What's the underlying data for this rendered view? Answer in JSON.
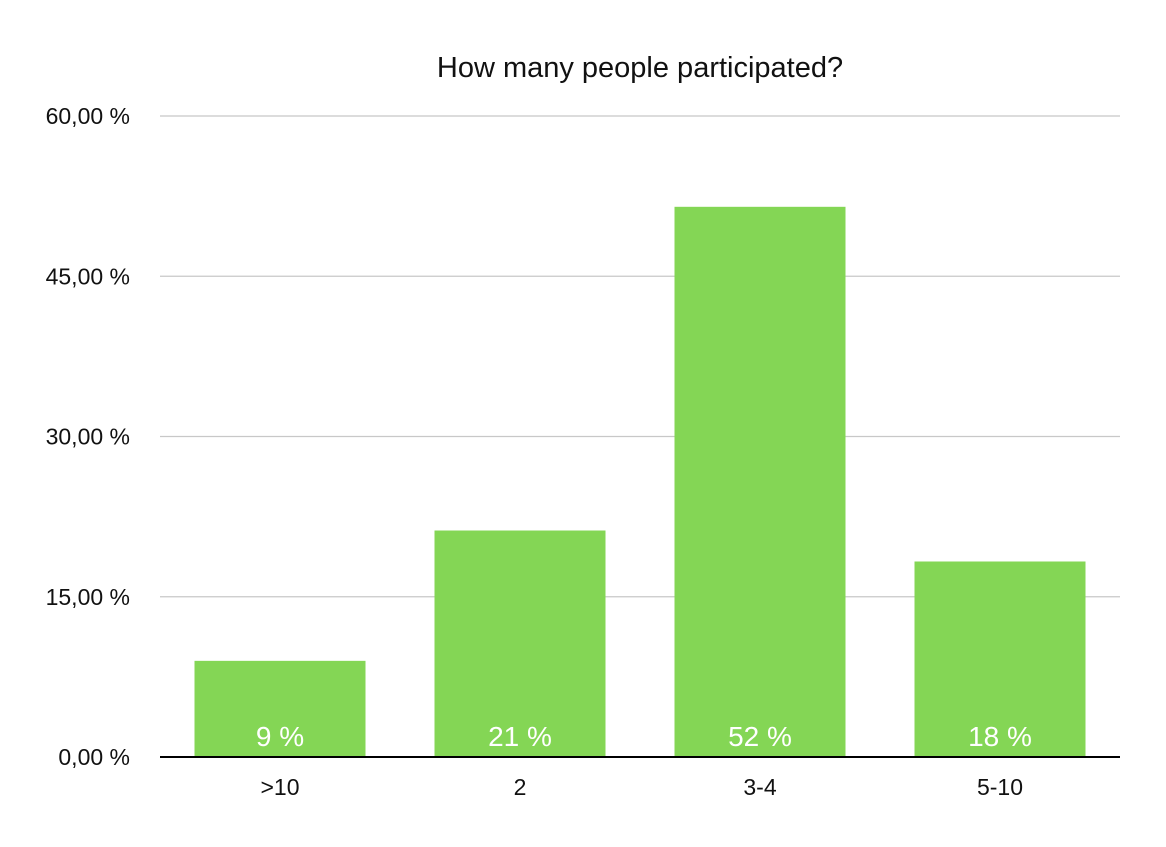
{
  "chart_data": {
    "type": "bar",
    "title": "How many people participated?",
    "categories": [
      ">10",
      "2",
      "3-4",
      "5-10"
    ],
    "values": [
      9,
      21.2,
      51.5,
      18.3
    ],
    "data_labels": [
      "9 %",
      "21 %",
      "52 %",
      "18 %"
    ],
    "y_tick_values": [
      0,
      15,
      30,
      45,
      60
    ],
    "y_tick_labels": [
      "0,00 %",
      "15,00 %",
      "30,00 %",
      "45,00 %",
      "60,00 %"
    ],
    "ylim": [
      0,
      60
    ],
    "xlabel": "",
    "ylabel": "",
    "grid": true,
    "legend": "none",
    "bar_color": "#84d655",
    "data_label_color": "#ffffff",
    "grid_color": "#c8c8c8",
    "axis_color": "#000000"
  }
}
